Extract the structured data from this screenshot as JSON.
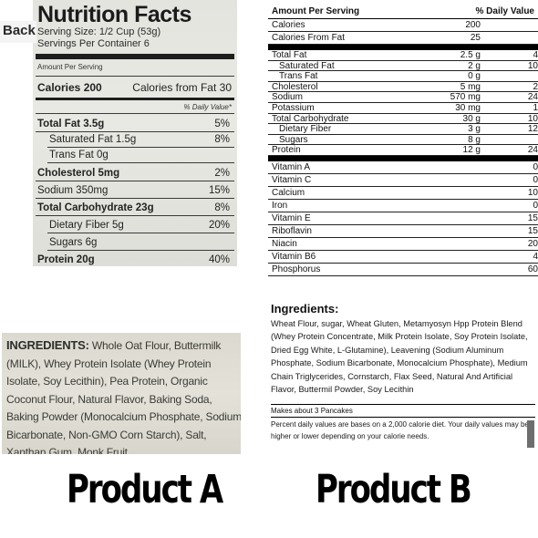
{
  "overlay": {
    "back_label": "Back"
  },
  "product_a": {
    "title": "Product A",
    "nutrition": {
      "heading": "Nutrition Facts",
      "serving_size": "Serving Size: 1/2 Cup (53g)",
      "servings_per_container": "Servings Per Container 6",
      "amount_per_serving": "Amount Per Serving",
      "calories": "Calories 200",
      "calories_from_fat": "Calories from Fat 30",
      "daily_value_header": "% Daily Value*",
      "rows": [
        {
          "label": "Total Fat 3.5g",
          "dv": "5%",
          "bold": true
        },
        {
          "label": "Saturated Fat 1.5g",
          "dv": "8%",
          "indent": true
        },
        {
          "label": "Trans Fat 0g",
          "dv": "",
          "indent": true
        },
        {
          "label": "Cholesterol 5mg",
          "dv": "2%",
          "bold": true
        },
        {
          "label": "Sodium 350mg",
          "dv": "15%"
        },
        {
          "label": "Total Carbohydrate 23g",
          "dv": "8%",
          "bold": true
        },
        {
          "label": "Dietary Fiber 5g",
          "dv": "20%",
          "indent": true
        },
        {
          "label": "Sugars 6g",
          "dv": "",
          "indent": true
        },
        {
          "label": "Protein 20g",
          "dv": "40%",
          "bold": true
        }
      ]
    },
    "ingredients": {
      "heading": "INGREDIENTS:",
      "text": "Whole Oat Flour, Buttermilk (MILK), Whey Protein Isolate (Whey Protein Isolate, Soy Lecithin), Pea Protein, Organic Coconut Flour, Natural Flavor, Baking Soda, Baking Powder (Monocalcium Phosphate, Sodium Bicarbonate, Non-GMO Corn Starch), Salt, Xanthan Gum, Monk Fruit."
    }
  },
  "product_b": {
    "title": "Product B",
    "nutrition": {
      "header_left": "Amount Per Serving",
      "header_right": "% Daily Value",
      "top_rows": [
        {
          "label": "Calories",
          "amount": "200",
          "dv": ""
        },
        {
          "label": "Calories From Fat",
          "amount": "25",
          "dv": "",
          "indent": true
        }
      ],
      "main_rows": [
        {
          "label": "Total Fat",
          "amount": "2.5 g",
          "dv": "4"
        },
        {
          "label": "Saturated Fat",
          "amount": "2 g",
          "dv": "10",
          "indent": true
        },
        {
          "label": "Trans Fat",
          "amount": "0 g",
          "dv": "",
          "indent": true
        },
        {
          "label": "Cholesterol",
          "amount": "5 mg",
          "dv": "2"
        },
        {
          "label": "Sodium",
          "amount": "570 mg",
          "dv": "24"
        },
        {
          "label": "Potassium",
          "amount": "30 mg",
          "dv": "1"
        },
        {
          "label": "Total Carbohydrate",
          "amount": "30 g",
          "dv": "10"
        },
        {
          "label": "Dietary Fiber",
          "amount": "3 g",
          "dv": "12",
          "indent": true
        },
        {
          "label": "Sugars",
          "amount": "8 g",
          "dv": "",
          "indent": true
        },
        {
          "label": "Protein",
          "amount": "12 g",
          "dv": "24"
        }
      ],
      "vitamins": [
        {
          "label": "Vitamin A",
          "dv": "0"
        },
        {
          "label": "Vitamin C",
          "dv": "0"
        },
        {
          "label": "Calcium",
          "dv": "10"
        },
        {
          "label": "Iron",
          "dv": "0"
        },
        {
          "label": "Vitamin E",
          "dv": "15"
        },
        {
          "label": "Riboflavin",
          "dv": "15"
        },
        {
          "label": "Niacin",
          "dv": "20"
        },
        {
          "label": "Vitamin B6",
          "dv": "4"
        },
        {
          "label": "Phosphorus",
          "dv": "60"
        }
      ]
    },
    "ingredients": {
      "heading": "Ingredients:",
      "text": "Wheat Flour, sugar, Wheat Gluten, Metamyosyn Hpp Protein Blend (Whey Protein Concentrate, Milk Protein Isolate, Soy Protein Isolate, Dried Egg White, L-Glutamine), Leavening (Sodium Aluminum Phosphate, Sodium Bicarbonate, Monocalcium Phosphate), Medium Chain Triglycerides, Cornstarch, Flax Seed, Natural And Artificial Flavor, Buttermil Powder, Soy Lecithin",
      "makes": "Makes about 3 Pancakes",
      "footnote": "Percent daily values are bases on a 2,000 calorie diet. Your daily values may be higher or lower depending on your calorie needs."
    }
  }
}
